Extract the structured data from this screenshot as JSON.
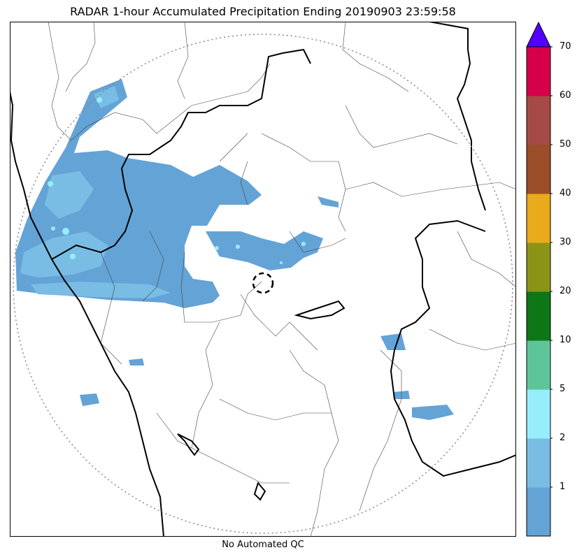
{
  "title": "RADAR 1-hour Accumulated Precipitation Ending 20190903 23:59:58",
  "footnote": "No Automated QC",
  "colorbar": {
    "bins": [
      {
        "lower": 0,
        "upper": 1,
        "color": "#64a3d6"
      },
      {
        "lower": 1,
        "upper": 2,
        "color": "#79bde4"
      },
      {
        "lower": 2,
        "upper": 5,
        "color": "#97edfb"
      },
      {
        "lower": 5,
        "upper": 10,
        "color": "#5ec49a"
      },
      {
        "lower": 10,
        "upper": 20,
        "color": "#0d7617"
      },
      {
        "lower": 20,
        "upper": 30,
        "color": "#8c9418"
      },
      {
        "lower": 30,
        "upper": 40,
        "color": "#e9aa1b"
      },
      {
        "lower": 40,
        "upper": 50,
        "color": "#9b4e28"
      },
      {
        "lower": 50,
        "upper": 60,
        "color": "#a64a45"
      },
      {
        "lower": 60,
        "upper": 70,
        "color": "#d6004a"
      }
    ],
    "overflow_color": "#5200ff",
    "tick_labels": [
      "1",
      "2",
      "5",
      "10",
      "20",
      "30",
      "40",
      "50",
      "60",
      "70"
    ]
  },
  "map": {
    "radar_range_ring": "dotted-gray",
    "radar_site_marker": "dashed-circle",
    "precip_colors": {
      "light": "#64a3d6",
      "moderate": "#79bde4",
      "heavy": "#97edfb"
    }
  }
}
